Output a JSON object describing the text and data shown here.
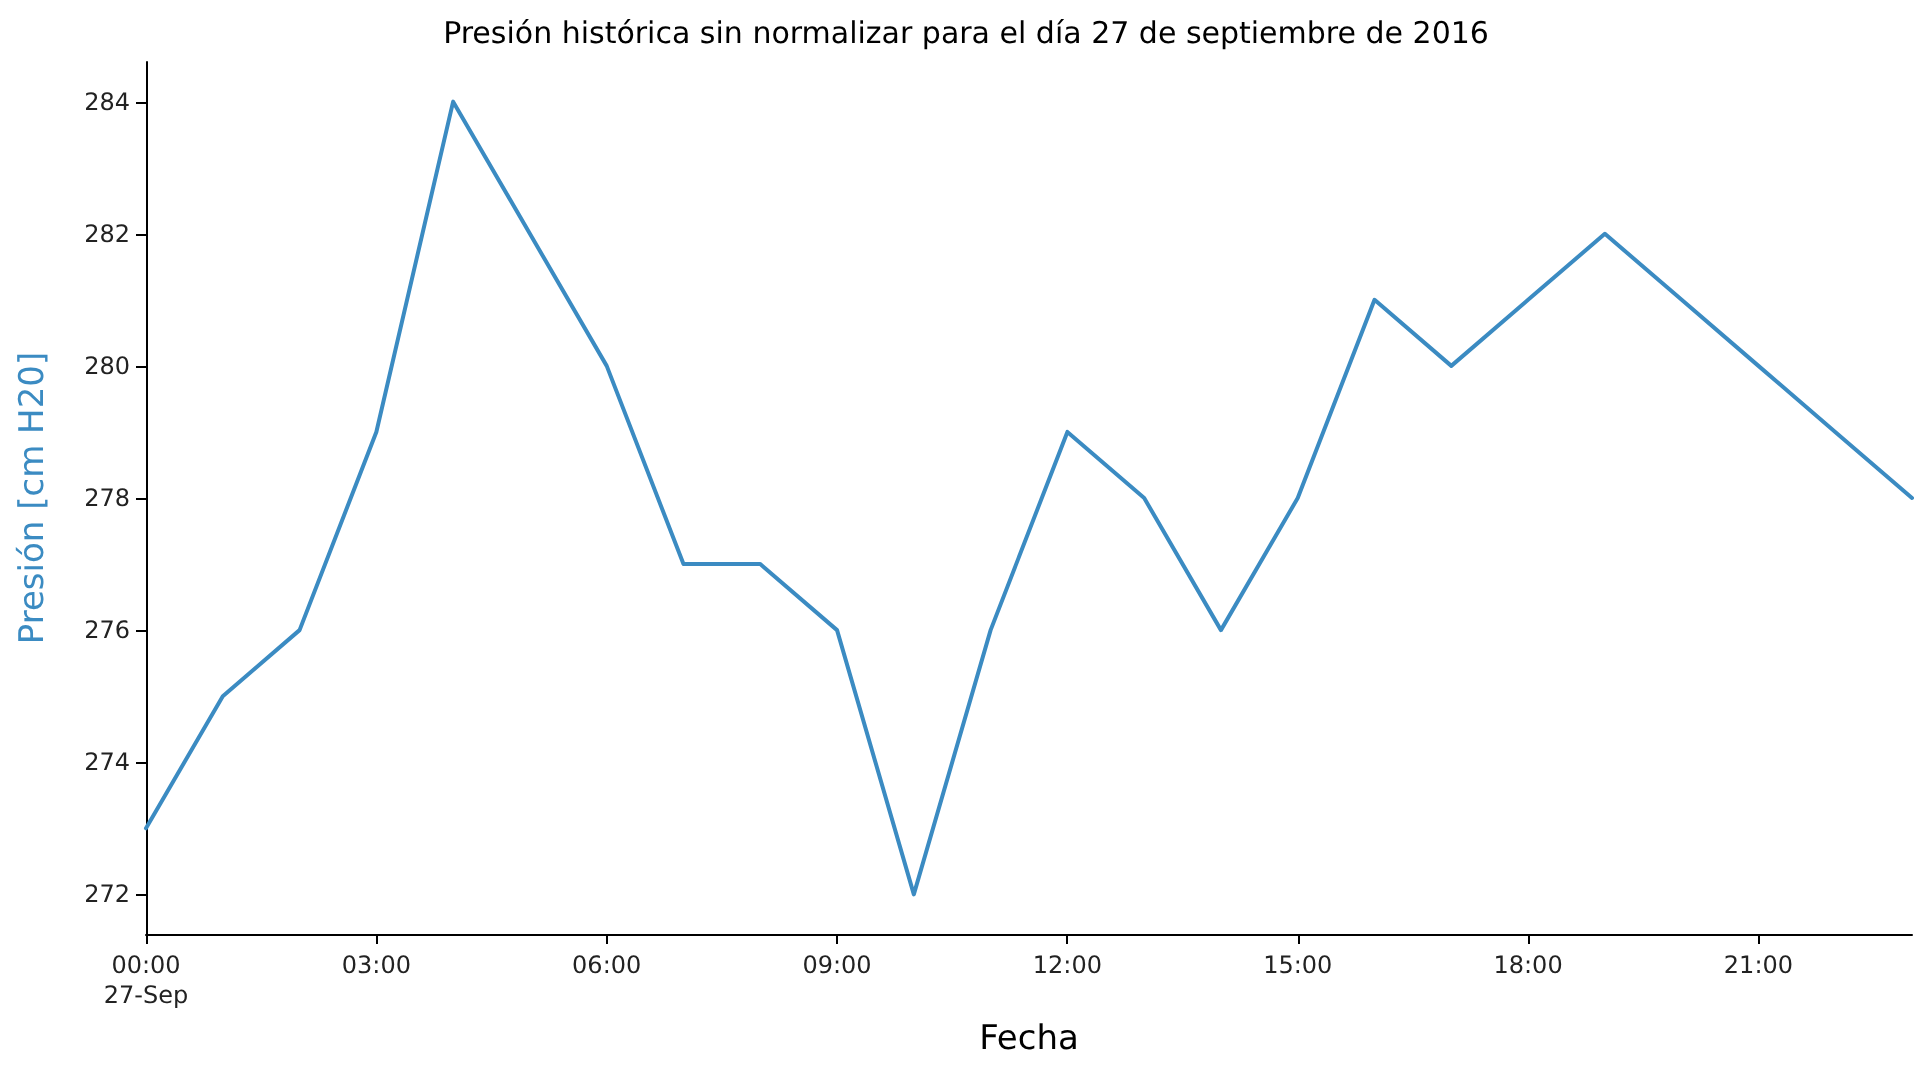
{
  "chart_data": {
    "type": "line",
    "title": "Presión histórica sin normalizar para el día 27 de septiembre de 2016",
    "xlabel": "Fecha",
    "ylabel": "Presión [cm H20]",
    "x": [
      0,
      1,
      2,
      3,
      4,
      5,
      6,
      7,
      8,
      9,
      10,
      11,
      12,
      13,
      14,
      15,
      16,
      17,
      18,
      19,
      20,
      21,
      22,
      23
    ],
    "series": [
      {
        "color": "#3b8bc2",
        "values": [
          273,
          275,
          276,
          279,
          284,
          282,
          280,
          277,
          277,
          276,
          272,
          276,
          279,
          278,
          276,
          278,
          281,
          280,
          281,
          282,
          281,
          280,
          279,
          278
        ]
      }
    ],
    "xlim": [
      0,
      23
    ],
    "xticks": [
      {
        "value": 0,
        "label": "00:00\n27-Sep"
      },
      {
        "value": 3,
        "label": "03:00"
      },
      {
        "value": 6,
        "label": "06:00"
      },
      {
        "value": 9,
        "label": "09:00"
      },
      {
        "value": 12,
        "label": "12:00"
      },
      {
        "value": 15,
        "label": "15:00"
      },
      {
        "value": 18,
        "label": "18:00"
      },
      {
        "value": 21,
        "label": "21:00"
      }
    ],
    "ylim": [
      271.4,
      284.6
    ],
    "yticks": [
      272,
      274,
      276,
      278,
      280,
      282,
      284
    ],
    "grid": false,
    "marker": "none",
    "line_style": "solid"
  }
}
